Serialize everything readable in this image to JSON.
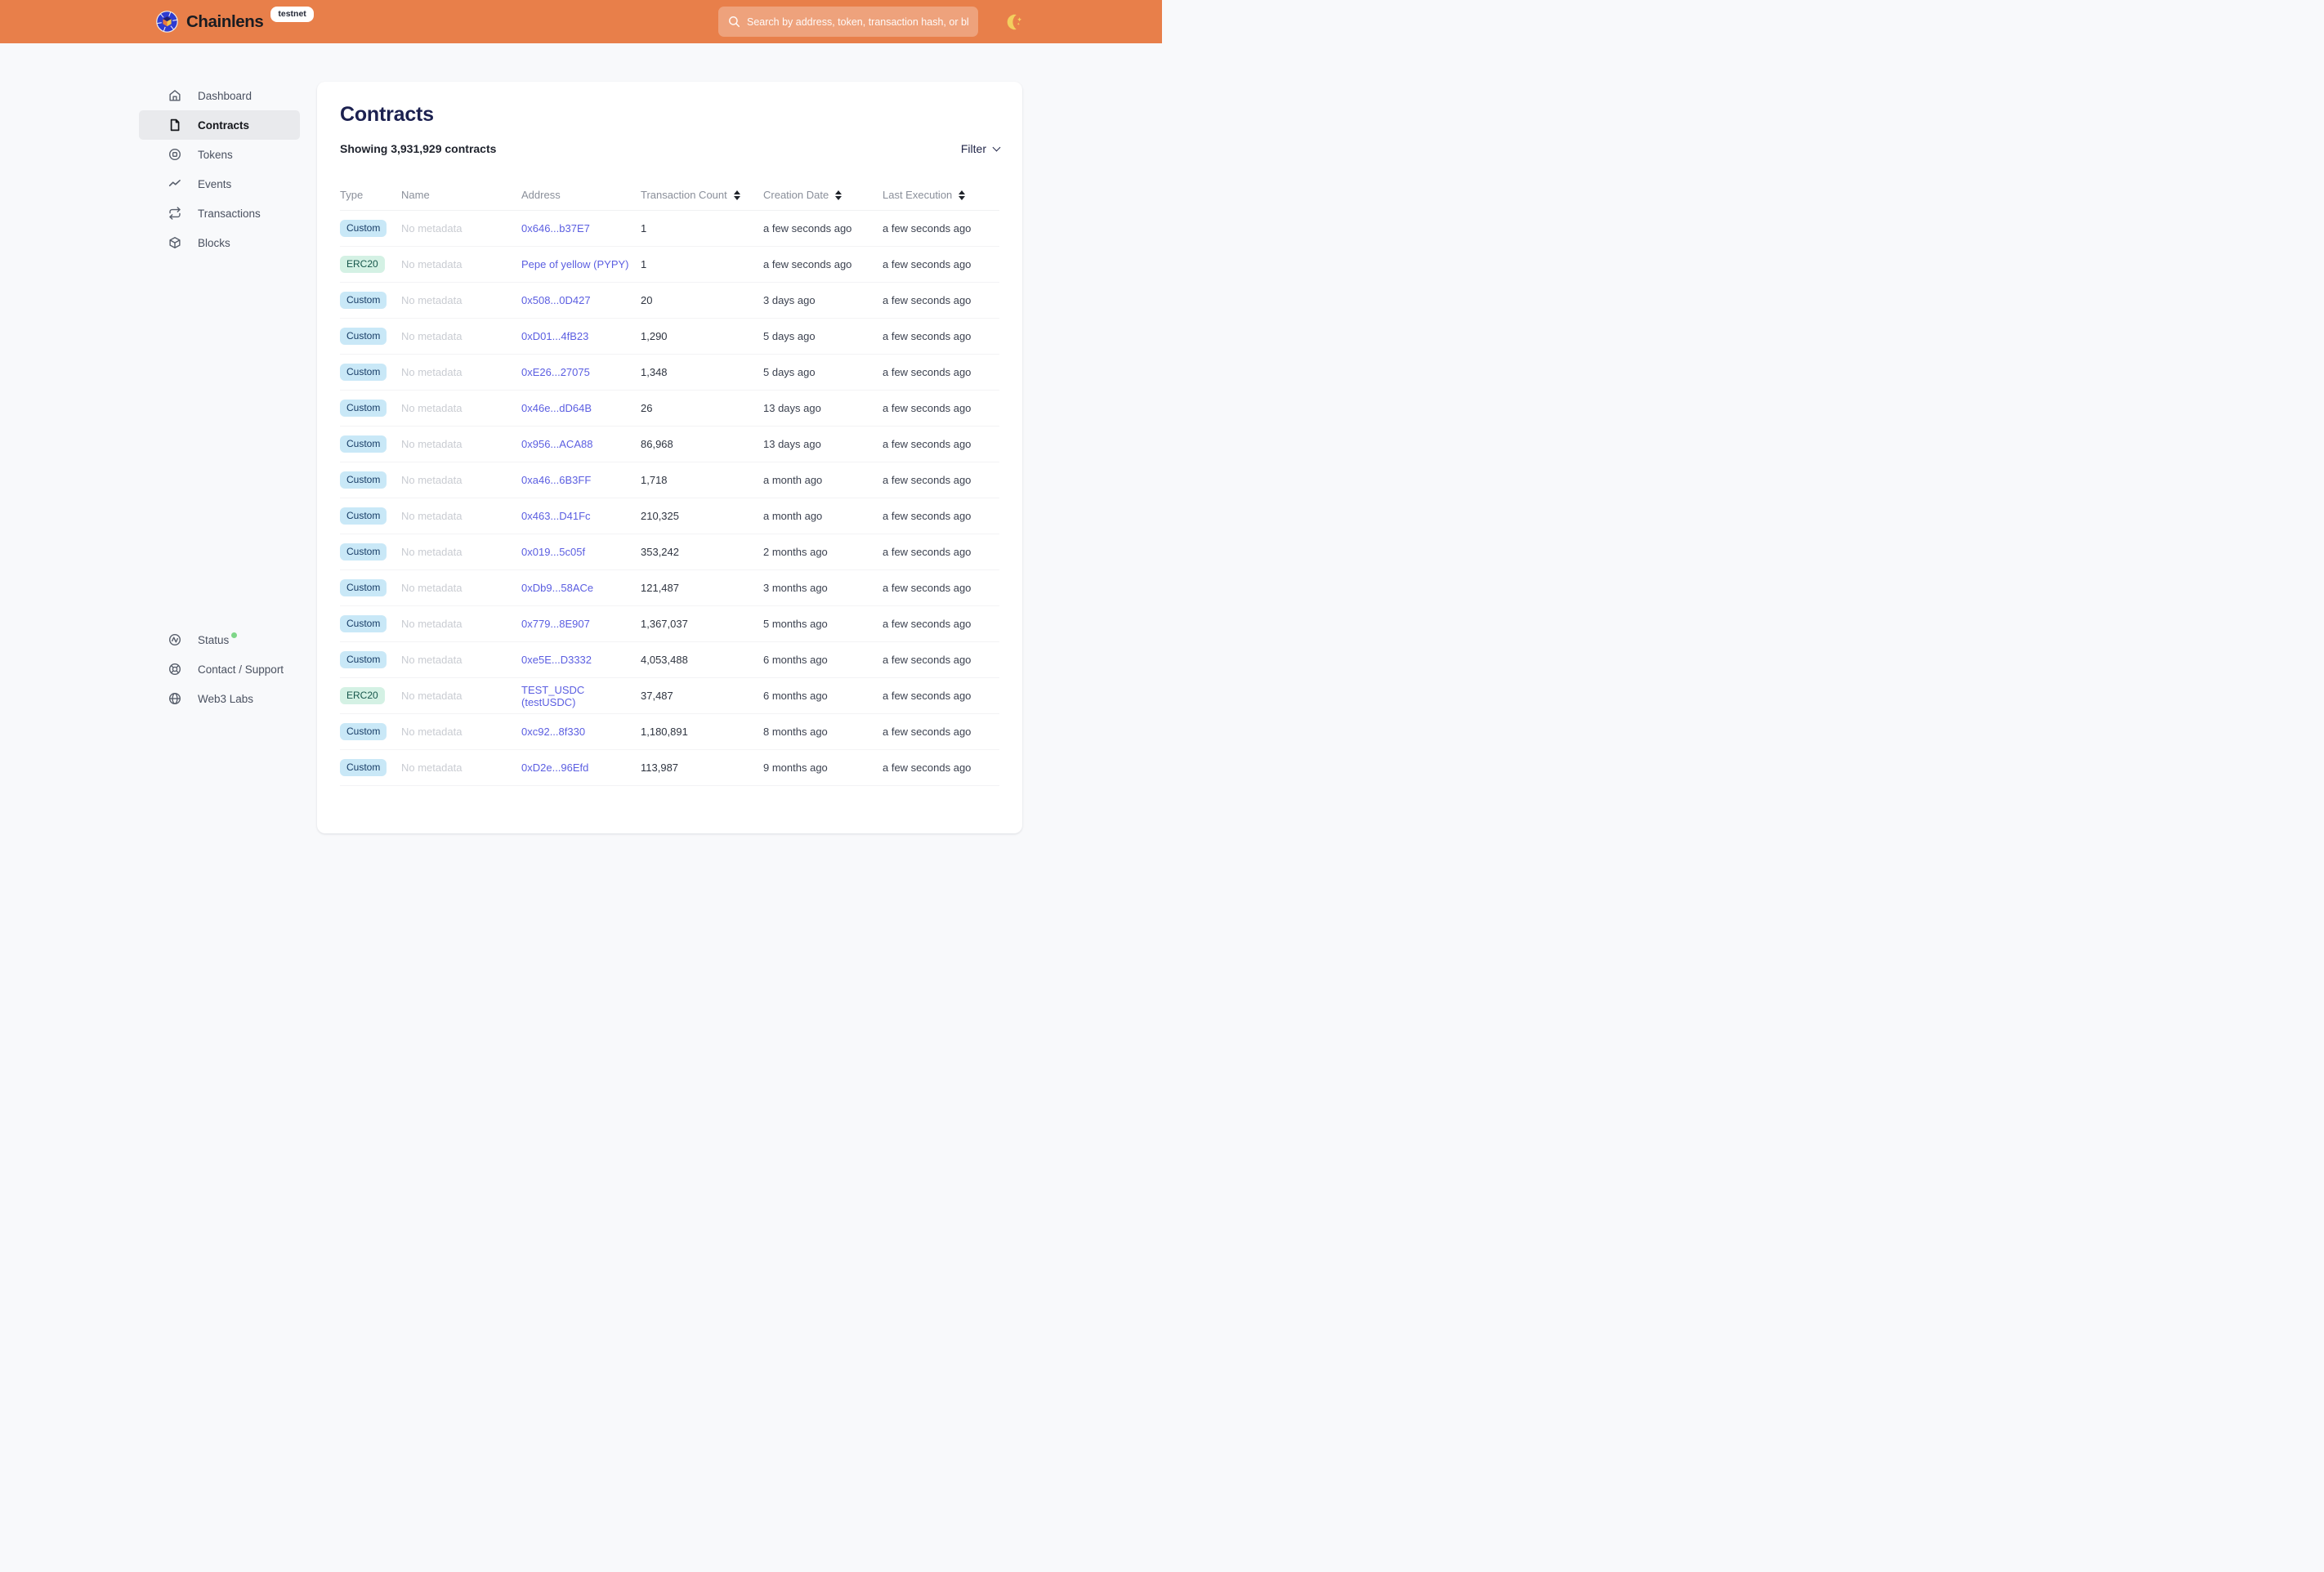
{
  "colors": {
    "header_bg": "#E87F4A",
    "brand_logo_blue": "#2F3BD0",
    "page_bg": "#F8F9FB",
    "card_bg": "#FFFFFF",
    "title_navy": "#1C2150",
    "link_indigo": "#5B5EE1",
    "badge_custom_bg": "#C9E8F7",
    "badge_custom_text": "#173C66",
    "badge_erc20_bg": "#D4F1E4",
    "badge_erc20_text": "#17564B",
    "status_dot_green": "#7ED688",
    "moon_yellow": "#F3CF5E"
  },
  "header": {
    "brand": "Chainlens",
    "env_badge": "testnet",
    "search": {
      "placeholder": "Search by address, token, transaction hash, or block number",
      "icon": "search-icon"
    },
    "theme_toggle_icon": "moon-icon"
  },
  "sidebar": {
    "nav": [
      {
        "label": "Dashboard",
        "icon": "home-icon",
        "active": false
      },
      {
        "label": "Contracts",
        "icon": "document-icon",
        "active": true
      },
      {
        "label": "Tokens",
        "icon": "token-icon",
        "active": false
      },
      {
        "label": "Events",
        "icon": "activity-icon",
        "active": false
      },
      {
        "label": "Transactions",
        "icon": "repeat-icon",
        "active": false
      },
      {
        "label": "Blocks",
        "icon": "cube-icon",
        "active": false
      }
    ],
    "footer": [
      {
        "label": "Status",
        "icon": "status-icon",
        "active": false,
        "status_dot": true
      },
      {
        "label": "Contact / Support",
        "icon": "lifebuoy-icon",
        "active": false
      },
      {
        "label": "Web3 Labs",
        "icon": "globe-icon",
        "active": false
      }
    ]
  },
  "main": {
    "title": "Contracts",
    "summary": "Showing 3,931,929 contracts",
    "filter_label": "Filter",
    "table": {
      "columns": [
        {
          "label": "Type",
          "sortable": false
        },
        {
          "label": "Name",
          "sortable": false
        },
        {
          "label": "Address",
          "sortable": false
        },
        {
          "label": "Transaction Count",
          "sortable": true
        },
        {
          "label": "Creation Date",
          "sortable": true
        },
        {
          "label": "Last Execution",
          "sortable": true
        }
      ],
      "rows": [
        {
          "type": "Custom",
          "name": "No metadata",
          "address": "0x646...b37E7",
          "tx_count": "1",
          "creation": "a few seconds ago",
          "last_execution": "a few seconds ago"
        },
        {
          "type": "ERC20",
          "name": "No metadata",
          "address": "Pepe of yellow (PYPY)",
          "tx_count": "1",
          "creation": "a few seconds ago",
          "last_execution": "a few seconds ago"
        },
        {
          "type": "Custom",
          "name": "No metadata",
          "address": "0x508...0D427",
          "tx_count": "20",
          "creation": "3 days ago",
          "last_execution": "a few seconds ago"
        },
        {
          "type": "Custom",
          "name": "No metadata",
          "address": "0xD01...4fB23",
          "tx_count": "1,290",
          "creation": "5 days ago",
          "last_execution": "a few seconds ago"
        },
        {
          "type": "Custom",
          "name": "No metadata",
          "address": "0xE26...27075",
          "tx_count": "1,348",
          "creation": "5 days ago",
          "last_execution": "a few seconds ago"
        },
        {
          "type": "Custom",
          "name": "No metadata",
          "address": "0x46e...dD64B",
          "tx_count": "26",
          "creation": "13 days ago",
          "last_execution": "a few seconds ago"
        },
        {
          "type": "Custom",
          "name": "No metadata",
          "address": "0x956...ACA88",
          "tx_count": "86,968",
          "creation": "13 days ago",
          "last_execution": "a few seconds ago"
        },
        {
          "type": "Custom",
          "name": "No metadata",
          "address": "0xa46...6B3FF",
          "tx_count": "1,718",
          "creation": "a month ago",
          "last_execution": "a few seconds ago"
        },
        {
          "type": "Custom",
          "name": "No metadata",
          "address": "0x463...D41Fc",
          "tx_count": "210,325",
          "creation": "a month ago",
          "last_execution": "a few seconds ago"
        },
        {
          "type": "Custom",
          "name": "No metadata",
          "address": "0x019...5c05f",
          "tx_count": "353,242",
          "creation": "2 months ago",
          "last_execution": "a few seconds ago"
        },
        {
          "type": "Custom",
          "name": "No metadata",
          "address": "0xDb9...58ACe",
          "tx_count": "121,487",
          "creation": "3 months ago",
          "last_execution": "a few seconds ago"
        },
        {
          "type": "Custom",
          "name": "No metadata",
          "address": "0x779...8E907",
          "tx_count": "1,367,037",
          "creation": "5 months ago",
          "last_execution": "a few seconds ago"
        },
        {
          "type": "Custom",
          "name": "No metadata",
          "address": "0xe5E...D3332",
          "tx_count": "4,053,488",
          "creation": "6 months ago",
          "last_execution": "a few seconds ago"
        },
        {
          "type": "ERC20",
          "name": "No metadata",
          "address": "TEST_USDC (testUSDC)",
          "tx_count": "37,487",
          "creation": "6 months ago",
          "last_execution": "a few seconds ago"
        },
        {
          "type": "Custom",
          "name": "No metadata",
          "address": "0xc92...8f330",
          "tx_count": "1,180,891",
          "creation": "8 months ago",
          "last_execution": "a few seconds ago"
        },
        {
          "type": "Custom",
          "name": "No metadata",
          "address": "0xD2e...96Efd",
          "tx_count": "113,987",
          "creation": "9 months ago",
          "last_execution": "a few seconds ago"
        }
      ]
    }
  }
}
